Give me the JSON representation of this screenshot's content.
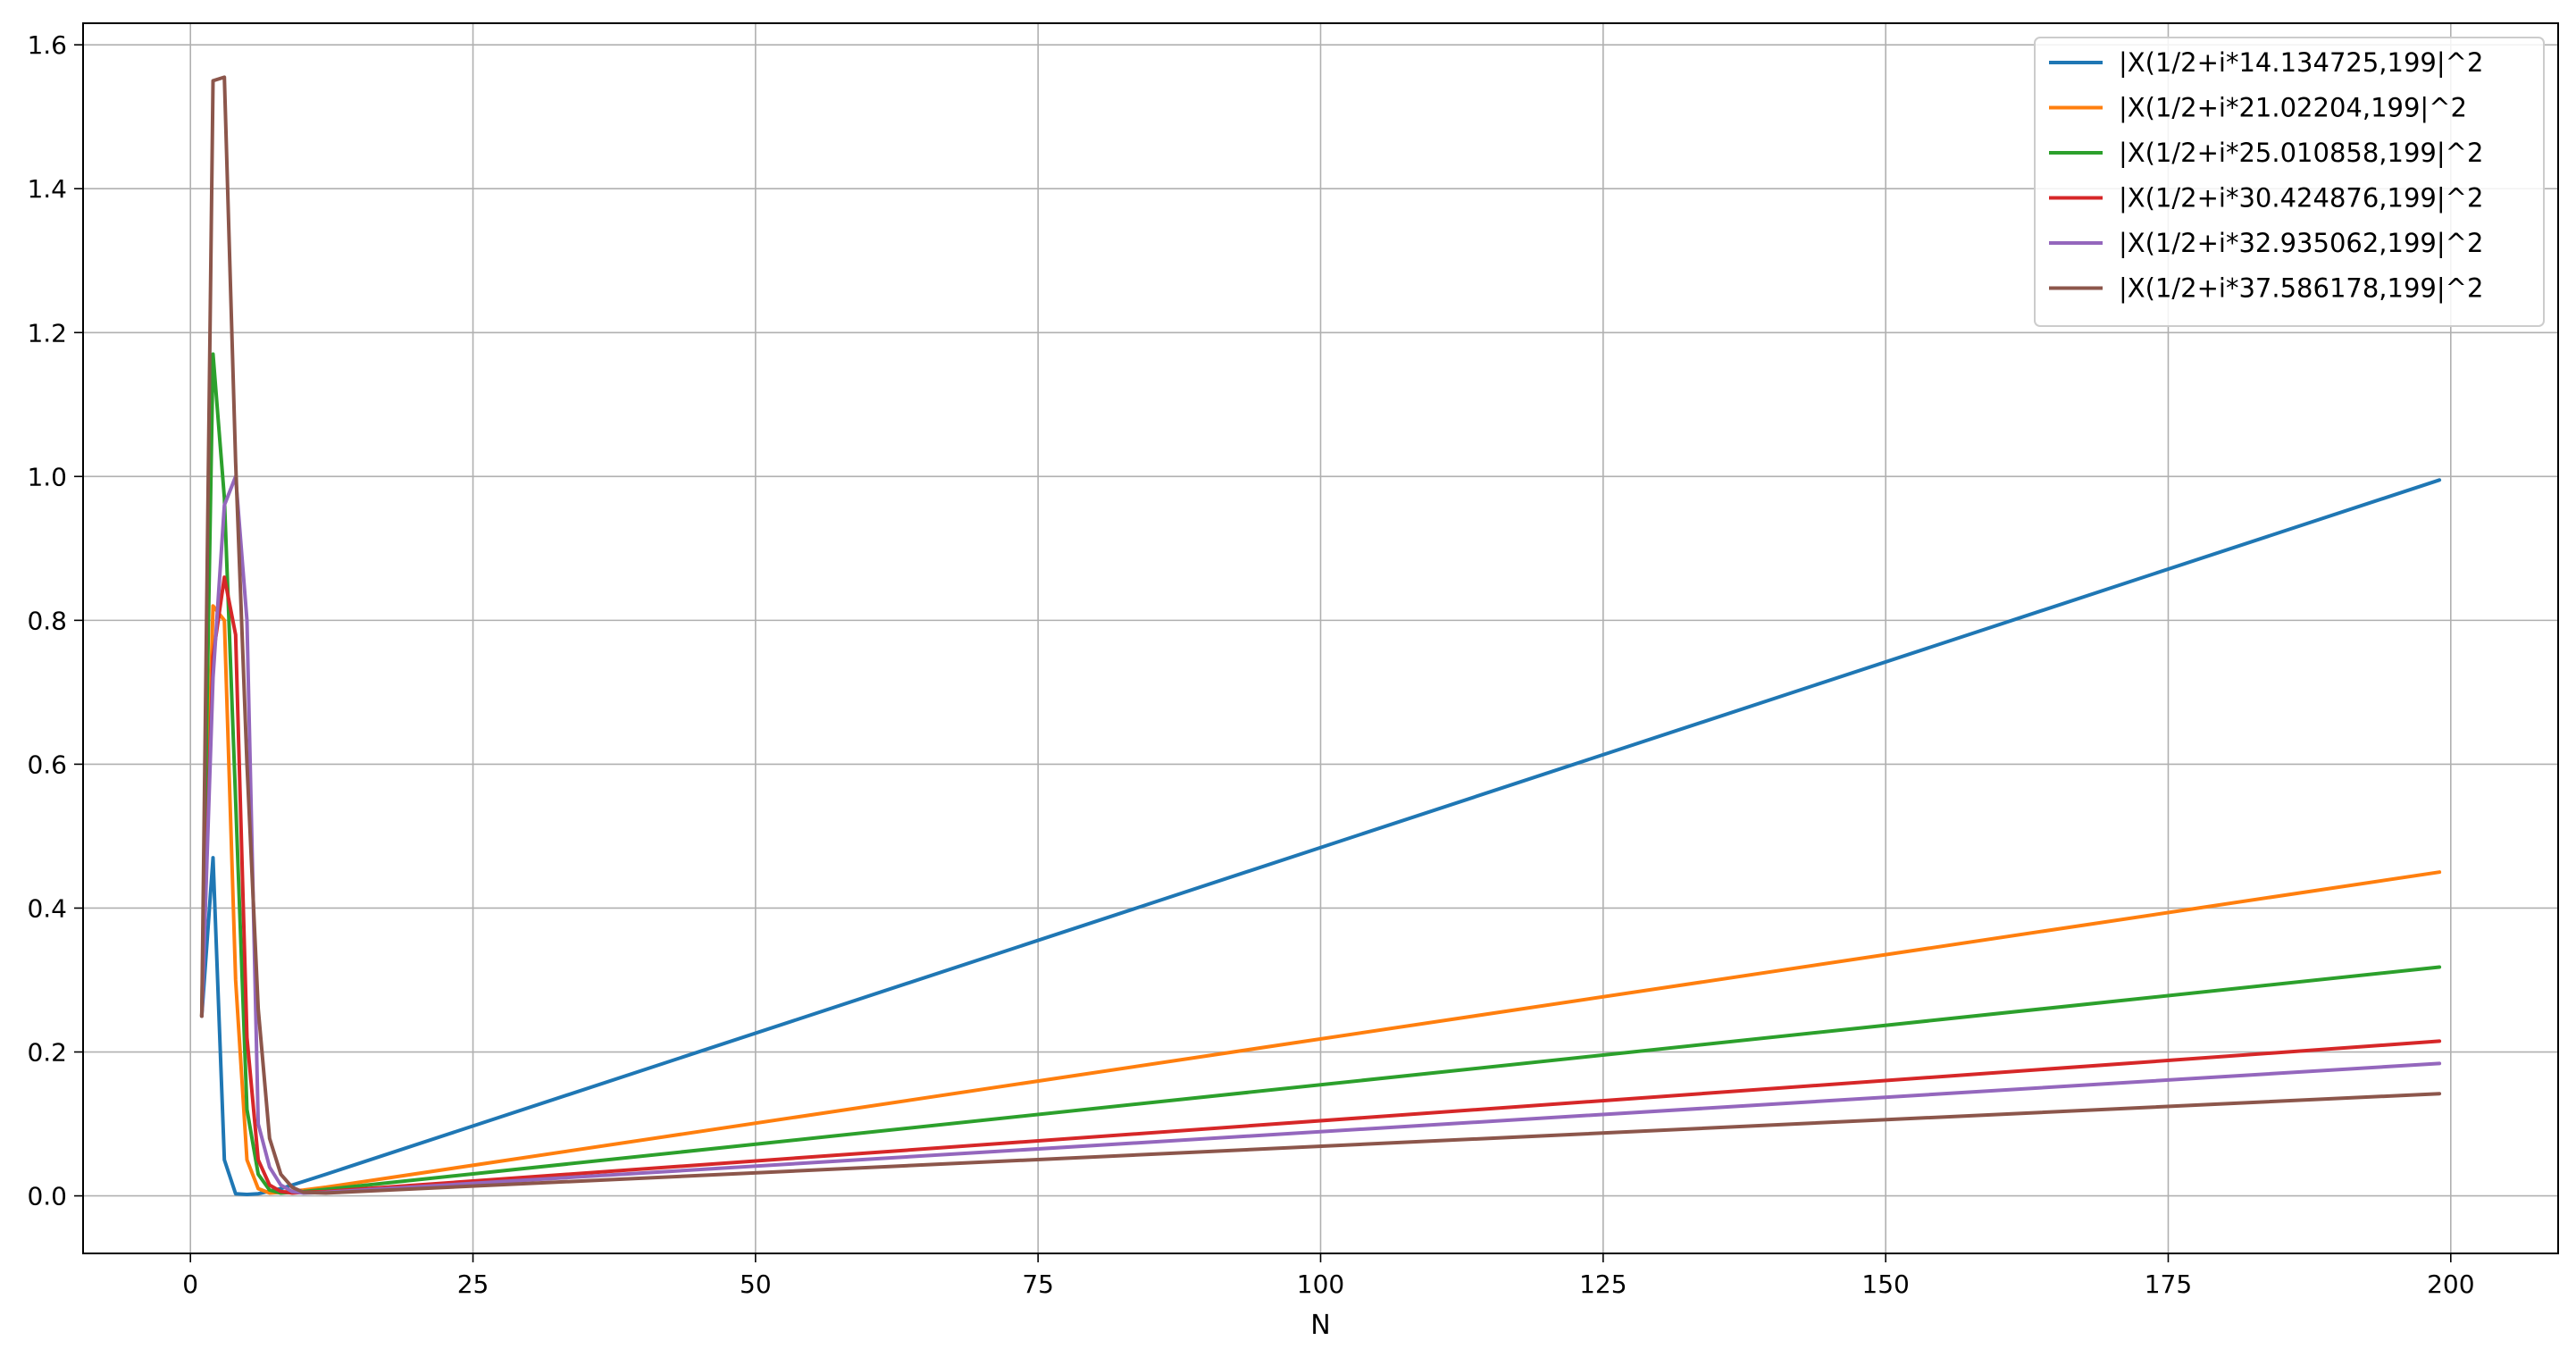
{
  "chart_data": {
    "type": "line",
    "xlabel": "N",
    "ylabel": "",
    "title": "",
    "xlim": [
      -9.5,
      209.5
    ],
    "ylim": [
      -0.08,
      1.63
    ],
    "xticks": [
      0,
      25,
      50,
      75,
      100,
      125,
      150,
      175,
      200
    ],
    "yticks": [
      0.0,
      0.2,
      0.4,
      0.6,
      0.8,
      1.0,
      1.2,
      1.4,
      1.6
    ],
    "xtick_labels": [
      "0",
      "25",
      "50",
      "75",
      "100",
      "125",
      "150",
      "175",
      "200"
    ],
    "ytick_labels": [
      "0.0",
      "0.2",
      "0.4",
      "0.6",
      "0.8",
      "1.0",
      "1.2",
      "1.4",
      "1.6"
    ],
    "grid": true,
    "legend_position": "top-right",
    "series": [
      {
        "name": "|X(1/2+i*14.134725,199|^2",
        "color": "#1f77b4",
        "x": [
          1,
          2,
          3,
          4,
          5,
          6,
          8,
          10,
          12,
          199
        ],
        "y": [
          0.25,
          0.47,
          0.05,
          0.003,
          0.002,
          0.003,
          0.01,
          0.02,
          0.03,
          0.995
        ]
      },
      {
        "name": "|X(1/2+i*21.02204,199|^2",
        "color": "#ff7f0e",
        "x": [
          1,
          2,
          3,
          4,
          5,
          6,
          7,
          8,
          10,
          12,
          199
        ],
        "y": [
          0.25,
          0.82,
          0.8,
          0.3,
          0.05,
          0.01,
          0.004,
          0.005,
          0.008,
          0.012,
          0.45
        ]
      },
      {
        "name": "|X(1/2+i*25.010858,199|^2",
        "color": "#2ca02c",
        "x": [
          1,
          2,
          3,
          4,
          5,
          6,
          7,
          8,
          10,
          12,
          199
        ],
        "y": [
          0.25,
          1.17,
          0.97,
          0.55,
          0.12,
          0.03,
          0.008,
          0.004,
          0.006,
          0.009,
          0.318
        ]
      },
      {
        "name": "|X(1/2+i*30.424876,199|^2",
        "color": "#d62728",
        "x": [
          1,
          2,
          3,
          4,
          5,
          6,
          7,
          8,
          9,
          10,
          12,
          199
        ],
        "y": [
          0.25,
          0.75,
          0.86,
          0.78,
          0.22,
          0.05,
          0.015,
          0.006,
          0.004,
          0.005,
          0.006,
          0.215
        ]
      },
      {
        "name": "|X(1/2+i*32.935062,199|^2",
        "color": "#9467bd",
        "x": [
          1,
          2,
          3,
          4,
          5,
          6,
          7,
          8,
          9,
          10,
          12,
          199
        ],
        "y": [
          0.25,
          0.72,
          0.96,
          1.0,
          0.8,
          0.1,
          0.04,
          0.015,
          0.006,
          0.004,
          0.005,
          0.184
        ]
      },
      {
        "name": "|X(1/2+i*37.586178,199|^2",
        "color": "#8c564b",
        "x": [
          1,
          2,
          3,
          4,
          5,
          6,
          7,
          8,
          9,
          10,
          12,
          199
        ],
        "y": [
          0.25,
          1.55,
          1.555,
          1.02,
          0.6,
          0.26,
          0.08,
          0.03,
          0.012,
          0.005,
          0.004,
          0.142
        ]
      }
    ]
  }
}
